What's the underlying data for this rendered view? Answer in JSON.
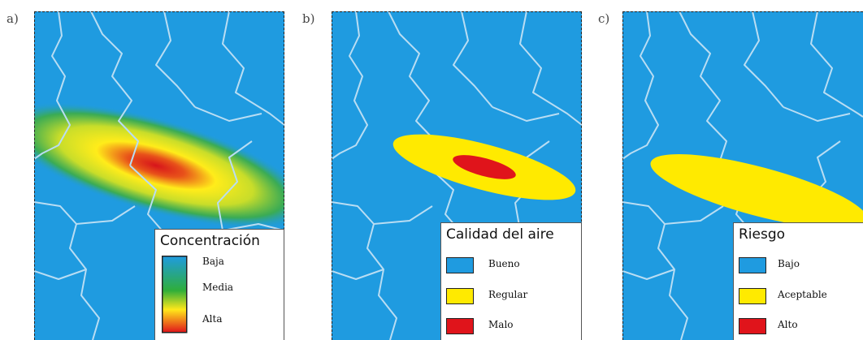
{
  "colors": {
    "water_background": "#1f9be0",
    "boundary": "#b9ddf3",
    "good": "#1f9be0",
    "moderate": "#ffea00",
    "bad": "#e0141b"
  },
  "panels": [
    {
      "label": "a)",
      "legend": {
        "title": "Concentración",
        "scale": [
          "Baja",
          "Media",
          "Alta"
        ]
      }
    },
    {
      "label": "b)",
      "legend": {
        "title": "Calidad del aire",
        "items": [
          "Bueno",
          "Regular",
          "Malo"
        ]
      }
    },
    {
      "label": "c)",
      "legend": {
        "title": "Riesgo",
        "items": [
          "Bajo",
          "Aceptable",
          "Alto"
        ]
      }
    }
  ]
}
